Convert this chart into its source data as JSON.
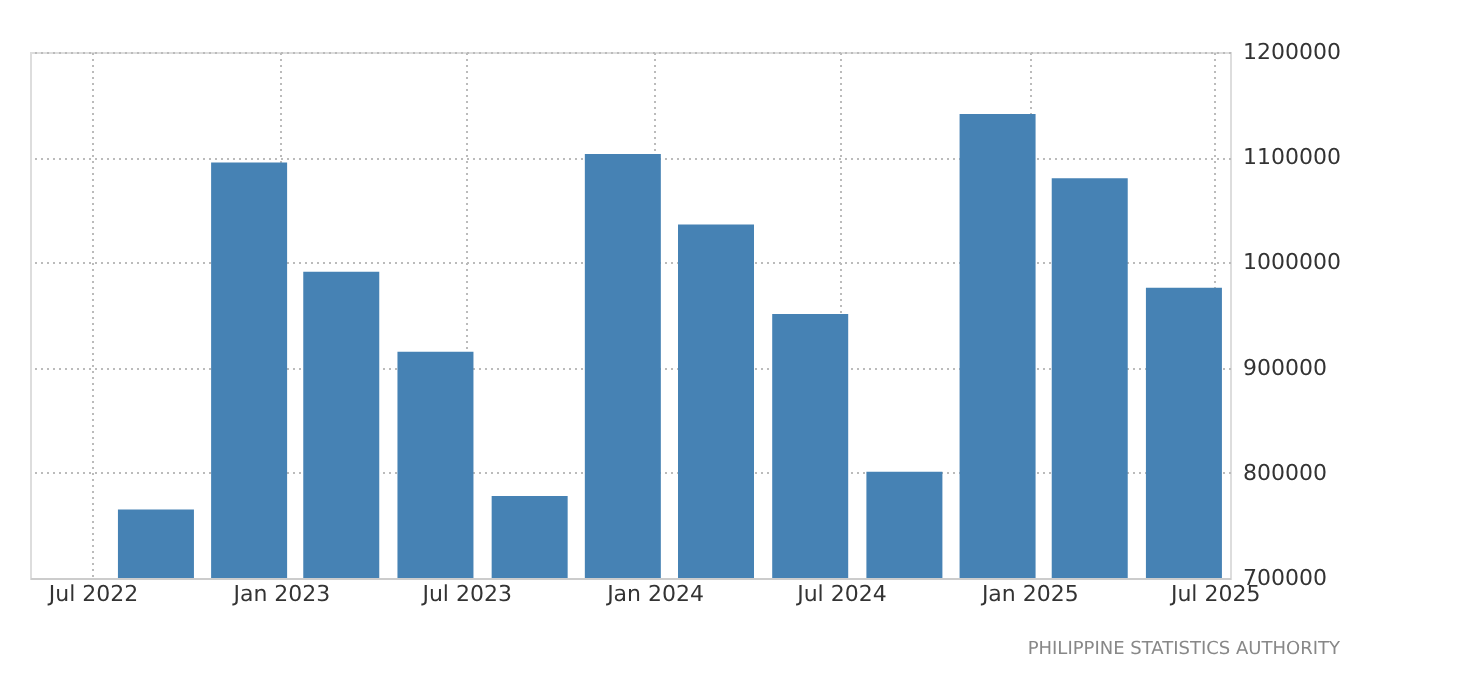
{
  "chart_data": {
    "type": "bar",
    "x": [
      "2022-09",
      "2022-12",
      "2023-03",
      "2023-06",
      "2023-09",
      "2023-12",
      "2024-03",
      "2024-06",
      "2024-09",
      "2024-12",
      "2025-03",
      "2025-06"
    ],
    "values": [
      765000,
      1095000,
      991000,
      915000,
      778000,
      1103000,
      1036000,
      951000,
      801000,
      1141000,
      1080000,
      976000
    ],
    "color": "#4682b4",
    "xlim": [
      "2022-05-01",
      "2025-07-16"
    ],
    "xticks": [
      {
        "value": "2022-07",
        "label": "Jul 2022"
      },
      {
        "value": "2023-01",
        "label": "Jan 2023"
      },
      {
        "value": "2023-07",
        "label": "Jul 2023"
      },
      {
        "value": "2024-01",
        "label": "Jan 2024"
      },
      {
        "value": "2024-07",
        "label": "Jul 2024"
      },
      {
        "value": "2025-01",
        "label": "Jan 2025"
      },
      {
        "value": "2025-07",
        "label": "Jul 2025"
      }
    ],
    "ylim": [
      700000,
      1200000
    ],
    "yticks": [
      700000,
      800000,
      900000,
      1000000,
      1100000,
      1200000
    ],
    "grid": true,
    "annotations": [
      "PHILIPPINE STATISTICS AUTHORITY"
    ]
  }
}
